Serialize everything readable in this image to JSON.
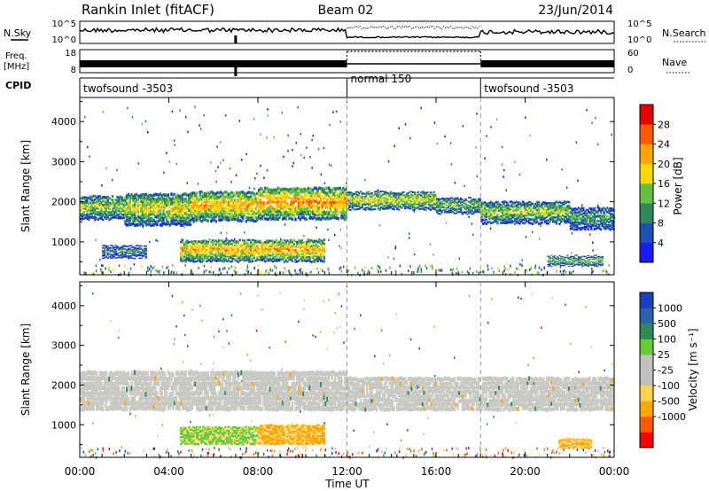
{
  "header": {
    "station": "Rankin Inlet (fitACF)",
    "beam": "Beam 02",
    "date": "23/Jun/2014"
  },
  "nsky_panel": {
    "left_label": "N.Sky",
    "right_label": "N.Search",
    "y_ticks": [
      "10^5",
      "10^0"
    ]
  },
  "freq_panel": {
    "left_label_1": "Freq.",
    "left_label_2": "[MHz]",
    "left_ticks": [
      "18",
      "8"
    ],
    "right_ticks": [
      "60",
      "0"
    ],
    "right_label": "Nave"
  },
  "cpid_panel": {
    "label": "CPID",
    "segments": [
      {
        "start_hour": 0,
        "label": "twofsound -3503"
      },
      {
        "start_hour": 12,
        "label": "normal 150"
      },
      {
        "start_hour": 18,
        "label": "twofsound -3503"
      }
    ]
  },
  "colors": {
    "power": [
      "#1a1aff",
      "#1f4fb0",
      "#2e8b57",
      "#66c040",
      "#ffd700",
      "#ffa500",
      "#ff5a00",
      "#e60000"
    ],
    "velocity": [
      "#ff0000",
      "#ff5a00",
      "#ffa500",
      "#ffd24d",
      "#c0c0c0",
      "#c0c0c0",
      "#66cc33",
      "#2e8b57",
      "#2e5fb0",
      "#1a3fc0"
    ],
    "velocity_ground": "#c8c8c4"
  },
  "chart_data": [
    {
      "type": "heatmap",
      "name": "power",
      "ylabel": "Slant Range [km]",
      "ylim": [
        180,
        4600
      ],
      "y_ticks": [
        1000,
        2000,
        3000,
        4000
      ],
      "colorbar_label": "Power [dB]",
      "colorbar_ticks": [
        "4",
        "8",
        "12",
        "16",
        "20",
        "24",
        "28"
      ],
      "colorbar_range": [
        0,
        32
      ],
      "bands": [
        {
          "t0": 0.0,
          "t1": 2.0,
          "r0": 1550,
          "r1": 2150,
          "level": 16
        },
        {
          "t0": 2.0,
          "t1": 5.0,
          "r0": 1400,
          "r1": 2200,
          "level": 18
        },
        {
          "t0": 5.0,
          "t1": 8.0,
          "r0": 1500,
          "r1": 2250,
          "level": 22
        },
        {
          "t0": 8.0,
          "t1": 12.0,
          "r0": 1550,
          "r1": 2350,
          "level": 24
        },
        {
          "t0": 12.0,
          "t1": 16.0,
          "r0": 1800,
          "r1": 2250,
          "level": 18
        },
        {
          "t0": 16.0,
          "t1": 18.0,
          "r0": 1700,
          "r1": 2100,
          "level": 14
        },
        {
          "t0": 18.0,
          "t1": 22.0,
          "r0": 1450,
          "r1": 2000,
          "level": 16
        },
        {
          "t0": 22.0,
          "t1": 24.0,
          "r0": 1300,
          "r1": 1850,
          "level": 12
        },
        {
          "t0": 1.0,
          "t1": 3.0,
          "r0": 600,
          "r1": 900,
          "level": 10
        },
        {
          "t0": 4.5,
          "t1": 11.0,
          "r0": 500,
          "r1": 1050,
          "level": 22
        },
        {
          "t0": 21.0,
          "t1": 23.5,
          "r0": 400,
          "r1": 650,
          "level": 14
        }
      ]
    },
    {
      "type": "heatmap",
      "name": "velocity",
      "xlabel": "Time UT",
      "ylabel": "Slant Range [km]",
      "x_ticks": [
        "00:00",
        "04:00",
        "08:00",
        "12:00",
        "16:00",
        "20:00",
        "00:00"
      ],
      "xlim": [
        0,
        24
      ],
      "ylim": [
        180,
        4600
      ],
      "y_ticks": [
        1000,
        2000,
        3000,
        4000
      ],
      "colorbar_label": "Velocity [m s⁻¹]",
      "colorbar_ticks": [
        "1000",
        "500",
        "100",
        "25",
        "-25",
        "-100",
        "-500",
        "-1000"
      ],
      "bands": [
        {
          "t0": 0.0,
          "t1": 12.0,
          "r0": 1350,
          "r1": 2350,
          "kind": "ground"
        },
        {
          "t0": 12.0,
          "t1": 24.0,
          "r0": 1350,
          "r1": 2200,
          "kind": "ground"
        },
        {
          "t0": 4.5,
          "t1": 8.0,
          "r0": 500,
          "r1": 950,
          "kind": "green"
        },
        {
          "t0": 8.0,
          "t1": 11.0,
          "r0": 500,
          "r1": 1000,
          "kind": "orange"
        },
        {
          "t0": 21.5,
          "t1": 23.0,
          "r0": 400,
          "r1": 650,
          "kind": "orange"
        }
      ]
    }
  ]
}
